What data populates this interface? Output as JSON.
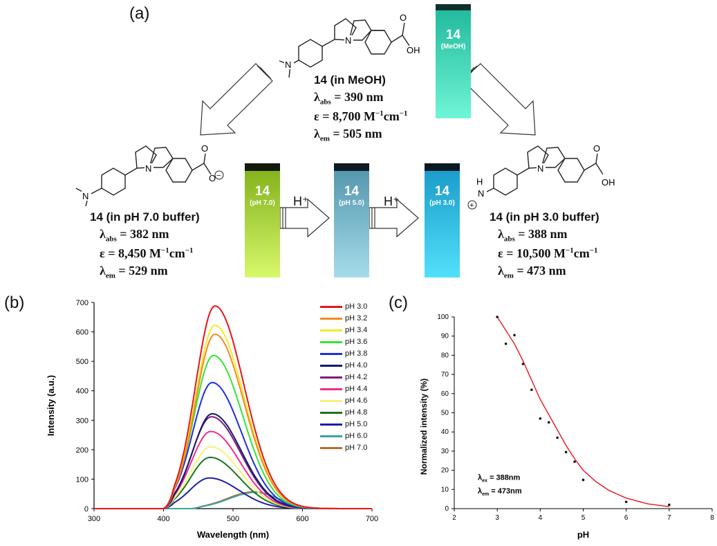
{
  "panel_labels": {
    "a": "(a)",
    "b": "(b)",
    "c": "(c)"
  },
  "compounds": {
    "meoh": {
      "name": "14 (in MeOH)",
      "abs_label": "λ",
      "abs_sub": "abs",
      "abs_value": " = 390 nm",
      "eps_prefix": "ε = 8,700 M",
      "eps_sup1": "−1",
      "eps_mid": "cm",
      "eps_sup2": "−1",
      "em_label": "λ",
      "em_sub": "em",
      "em_value": " = 505 nm"
    },
    "ph7": {
      "name": "14 (in pH 7.0 buffer)",
      "abs_label": "λ",
      "abs_sub": "abs",
      "abs_value": " = 382 nm",
      "eps_prefix": "ε = 8,450 M",
      "eps_sup1": "−1",
      "eps_mid": "cm",
      "eps_sup2": "−1",
      "em_label": "λ",
      "em_sub": "em",
      "em_value": " = 529 nm"
    },
    "ph3": {
      "name": "14 (in pH 3.0 buffer)",
      "abs_label": "λ",
      "abs_sub": "abs",
      "abs_value": " = 388 nm",
      "eps_prefix": "ε = 10,500 M",
      "eps_sup1": "−1",
      "eps_mid": "cm",
      "eps_sup2": "−1",
      "em_label": "λ",
      "em_sub": "em",
      "em_value": " = 473 nm"
    }
  },
  "structure_labels": {
    "n": "N",
    "oh": "OH",
    "o": "O",
    "h": "H",
    "minus": "−",
    "plus": "+"
  },
  "vials": {
    "meoh": {
      "number": "14",
      "condition": "(MeOH)",
      "color_top": "#1fb79a",
      "color_bottom": "#6ff5d6"
    },
    "ph7": {
      "number": "14",
      "condition": "(pH 7.0)",
      "color_top": "#7fae18",
      "color_bottom": "#d7f86a"
    },
    "ph5": {
      "number": "14",
      "condition": "(pH 5.0)",
      "color_top": "#4f93aa",
      "color_bottom": "#a6dcea"
    },
    "ph3": {
      "number": "14",
      "condition": "(pH 3.0)",
      "color_top": "#1798c7",
      "color_bottom": "#52e0fb"
    }
  },
  "arrows": {
    "h_plus_1": "H⁺",
    "h_plus_2": "H⁺"
  },
  "chart_data": [
    {
      "type": "line",
      "panel": "(b)",
      "title": "",
      "xlabel": "Wavelength (nm)",
      "ylabel": "Intensity (a.u.)",
      "xlim": [
        300,
        700
      ],
      "ylim": [
        0,
        700
      ],
      "xticks": [
        300,
        400,
        500,
        600,
        700
      ],
      "yticks": [
        0,
        100,
        200,
        300,
        400,
        500,
        600,
        700
      ],
      "legend_position": "top-right",
      "series": [
        {
          "name": "pH 3.0",
          "color": "#e8141a",
          "peak_wavelength": 474,
          "peak_intensity": 688
        },
        {
          "name": "pH 3.2",
          "color": "#f28a1f",
          "peak_wavelength": 474,
          "peak_intensity": 592
        },
        {
          "name": "pH 3.4",
          "color": "#f5ea28",
          "peak_wavelength": 474,
          "peak_intensity": 622
        },
        {
          "name": "pH 3.6",
          "color": "#33e632",
          "peak_wavelength": 472,
          "peak_intensity": 520
        },
        {
          "name": "pH 3.8",
          "color": "#1a2fe0",
          "peak_wavelength": 470,
          "peak_intensity": 428
        },
        {
          "name": "pH 4.0",
          "color": "#101a6e",
          "peak_wavelength": 470,
          "peak_intensity": 322
        },
        {
          "name": "pH 4.2",
          "color": "#7b1c7e",
          "peak_wavelength": 469,
          "peak_intensity": 312
        },
        {
          "name": "pH 4.4",
          "color": "#ef2c8a",
          "peak_wavelength": 468,
          "peak_intensity": 262
        },
        {
          "name": "pH 4.6",
          "color": "#f6f27a",
          "peak_wavelength": 468,
          "peak_intensity": 210
        },
        {
          "name": "pH 4.8",
          "color": "#17751f",
          "peak_wavelength": 467,
          "peak_intensity": 174
        },
        {
          "name": "pH 5.0",
          "color": "#1d1ea8",
          "peak_wavelength": 466,
          "peak_intensity": 104
        },
        {
          "name": "pH 6.0",
          "color": "#3aa3a0",
          "peak_wavelength": 532,
          "peak_intensity": 55
        },
        {
          "name": "pH 7.0",
          "color": "#b56d2b",
          "peak_wavelength": 530,
          "peak_intensity": 57
        }
      ]
    },
    {
      "type": "scatter",
      "panel": "(c)",
      "title": "",
      "xlabel": "pH",
      "ylabel": "Normalized intensity (%)",
      "xlim": [
        2,
        8
      ],
      "ylim": [
        0,
        100
      ],
      "xticks": [
        2,
        3,
        4,
        5,
        6,
        7,
        8
      ],
      "yticks": [
        0,
        10,
        20,
        30,
        40,
        50,
        60,
        70,
        80,
        90,
        100
      ],
      "points": [
        {
          "x": 3.0,
          "y": 100
        },
        {
          "x": 3.2,
          "y": 86
        },
        {
          "x": 3.4,
          "y": 90.5
        },
        {
          "x": 3.6,
          "y": 75.5
        },
        {
          "x": 3.8,
          "y": 62
        },
        {
          "x": 4.0,
          "y": 47
        },
        {
          "x": 4.2,
          "y": 45
        },
        {
          "x": 4.4,
          "y": 37
        },
        {
          "x": 4.6,
          "y": 29.5
        },
        {
          "x": 4.8,
          "y": 24.5
        },
        {
          "x": 5.0,
          "y": 15
        },
        {
          "x": 6.0,
          "y": 3.5
        },
        {
          "x": 7.0,
          "y": 2
        }
      ],
      "fit_line_color": "#e8141a",
      "fit_curve": [
        [
          3.0,
          100
        ],
        [
          3.2,
          93
        ],
        [
          3.4,
          86
        ],
        [
          3.6,
          77
        ],
        [
          3.8,
          67
        ],
        [
          4.0,
          57
        ],
        [
          4.2,
          49
        ],
        [
          4.4,
          41
        ],
        [
          4.6,
          33
        ],
        [
          4.8,
          26
        ],
        [
          5.0,
          20
        ],
        [
          5.3,
          14
        ],
        [
          5.6,
          9.5
        ],
        [
          6.0,
          5.5
        ],
        [
          6.5,
          2.5
        ],
        [
          7.0,
          1
        ]
      ],
      "annotations": [
        {
          "symbol": "λ",
          "sub": "ex",
          "value": " = 388nm"
        },
        {
          "symbol": "λ",
          "sub": "em",
          "value": " = 473nm"
        }
      ]
    }
  ]
}
